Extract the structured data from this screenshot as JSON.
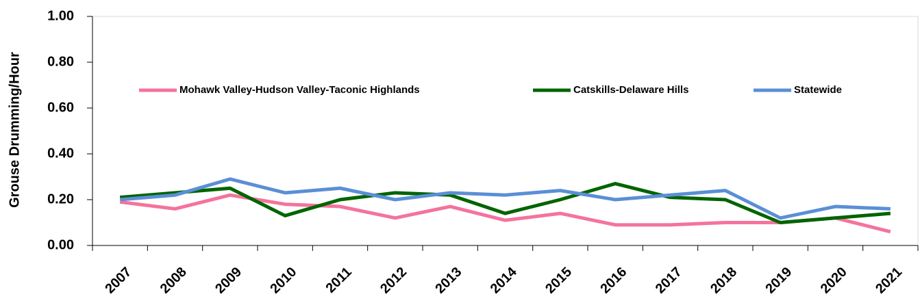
{
  "chart_data": {
    "type": "line",
    "y_label": "Grouse Drumming/Hour",
    "categories": [
      "2007",
      "2008",
      "2009",
      "2010",
      "2011",
      "2012",
      "2013",
      "2014",
      "2015",
      "2016",
      "2017",
      "2018",
      "2019",
      "2020",
      "2021"
    ],
    "series": [
      {
        "name": "Mohawk Valley-Hudson Valley-Taconic Highlands",
        "color": "#f4739c",
        "values": [
          0.19,
          0.16,
          0.22,
          0.18,
          0.17,
          0.12,
          0.17,
          0.11,
          0.14,
          0.09,
          0.09,
          0.1,
          0.1,
          0.12,
          0.06
        ]
      },
      {
        "name": "Catskills-Delaware Hills",
        "color": "#006400",
        "values": [
          0.21,
          0.23,
          0.25,
          0.13,
          0.2,
          0.23,
          0.22,
          0.14,
          0.2,
          0.27,
          0.21,
          0.2,
          0.1,
          0.12,
          0.14
        ]
      },
      {
        "name": "Statewide",
        "color": "#5b8fd6",
        "values": [
          0.2,
          0.22,
          0.29,
          0.23,
          0.25,
          0.2,
          0.23,
          0.22,
          0.24,
          0.2,
          0.22,
          0.24,
          0.12,
          0.17,
          0.16
        ]
      }
    ],
    "ylim": [
      0,
      1
    ],
    "yticks": [
      {
        "value": 0,
        "label": "0.00"
      },
      {
        "value": 0.2,
        "label": "0.20"
      },
      {
        "value": 0.4,
        "label": "0.40"
      },
      {
        "value": 0.6,
        "label": "0.60"
      },
      {
        "value": 0.8,
        "label": "0.80"
      },
      {
        "value": 1,
        "label": "1.00"
      }
    ],
    "legend": "top"
  }
}
